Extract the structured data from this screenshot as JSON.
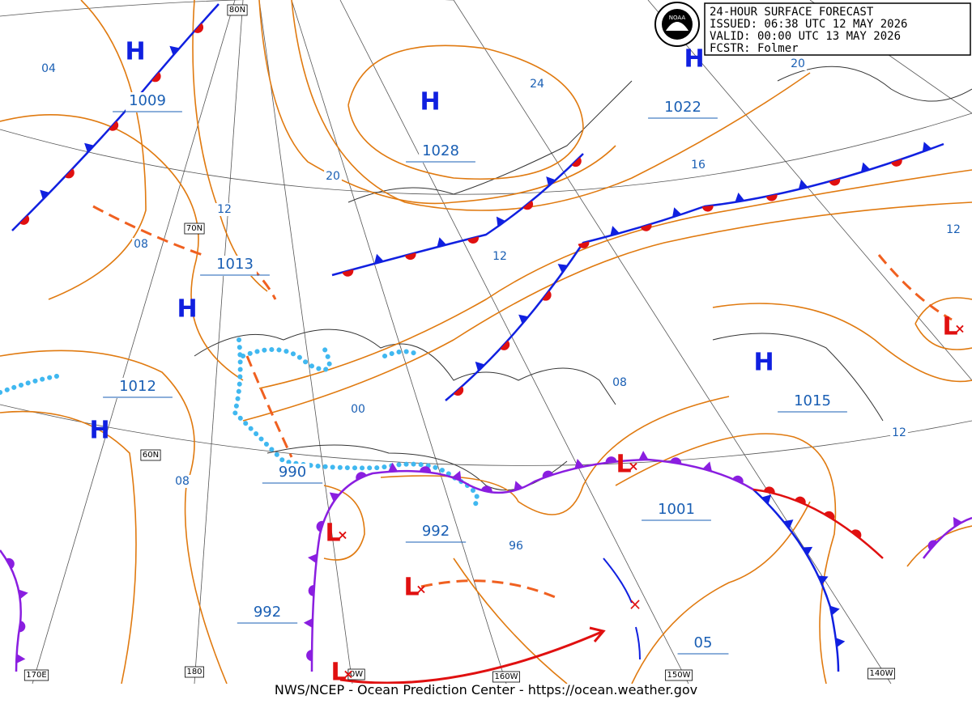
{
  "header": {
    "title": "24-HOUR SURFACE FORECAST",
    "issued": "ISSUED: 06:38 UTC 12 MAY 2026",
    "valid": "VALID: 00:00 UTC 13 MAY 2026",
    "forecaster": "FCSTR: Folmer"
  },
  "footer": "NWS/NCEP - Ocean Prediction Center - https://ocean.weather.gov",
  "logo": "NOAA",
  "pressure_labels": [
    "1009",
    "1028",
    "1022",
    "1013",
    "1012",
    "1015",
    "990",
    "992",
    "1001",
    "992",
    "05"
  ],
  "isobar_labels": [
    "04",
    "24",
    "20",
    "20",
    "16",
    "12",
    "08",
    "12",
    "12",
    "00",
    "08",
    "12",
    "08",
    "96"
  ],
  "graticule_labels": [
    "80N",
    "70N",
    "60N",
    "170E",
    "180",
    "0W",
    "160W",
    "150W",
    "140W"
  ],
  "highs": [
    "H",
    "H",
    "H",
    "H",
    "H",
    "H"
  ],
  "lows": [
    "L",
    "L",
    "L",
    "L",
    "L"
  ]
}
